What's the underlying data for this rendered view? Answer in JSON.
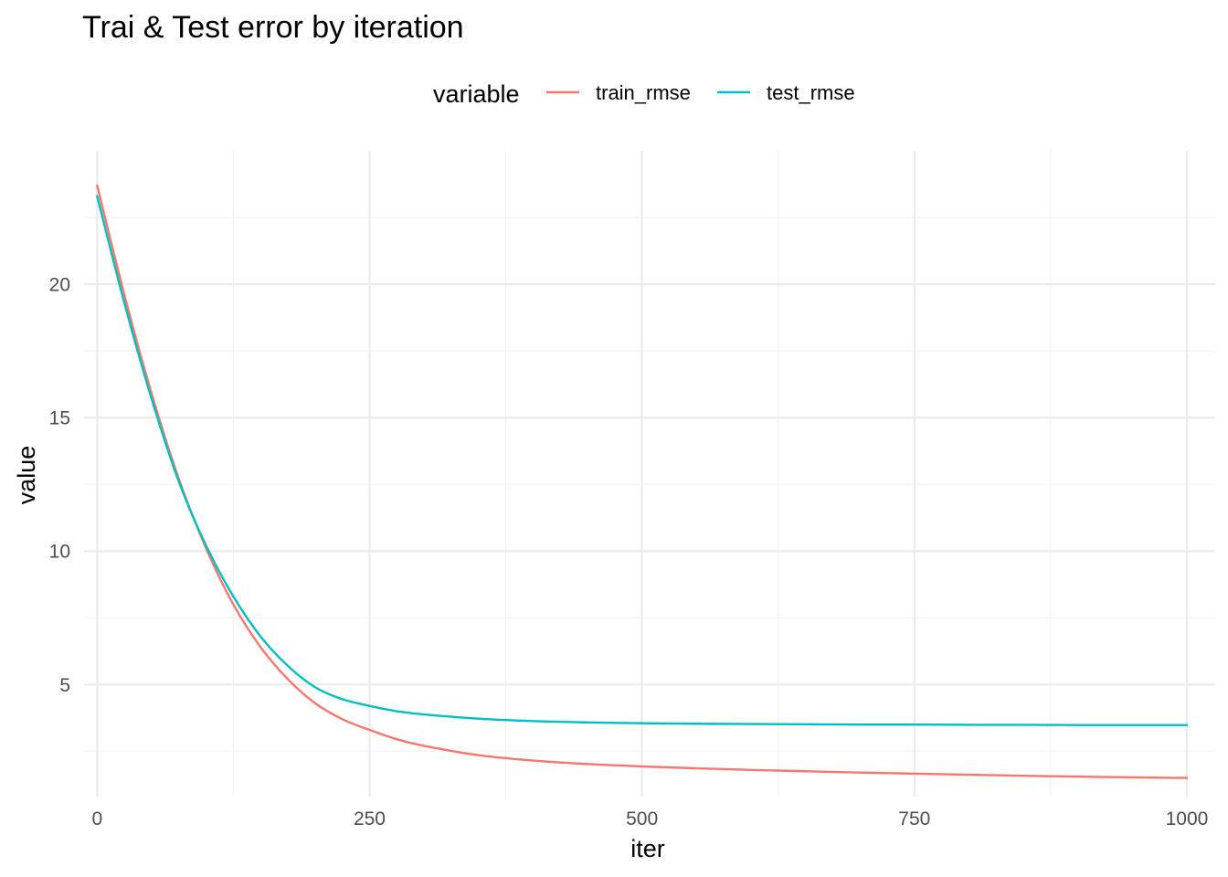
{
  "chart_data": {
    "type": "line",
    "title": "Trai & Test error by iteration",
    "xlabel": "iter",
    "ylabel": "value",
    "xlim": [
      -12,
      1026
    ],
    "ylim": [
      0.8,
      25
    ],
    "x_ticks": [
      0,
      250,
      500,
      750,
      1000
    ],
    "x_tick_labels": [
      "0",
      "250",
      "500",
      "750",
      "1000"
    ],
    "y_ticks": [
      5,
      10,
      15,
      20
    ],
    "y_tick_labels": [
      "5",
      "10",
      "15",
      "20"
    ],
    "grid": true,
    "legend": {
      "title": "variable",
      "placement": "top"
    },
    "x": [
      0,
      25,
      50,
      75,
      100,
      125,
      150,
      175,
      200,
      225,
      250,
      275,
      300,
      350,
      400,
      450,
      500,
      550,
      600,
      650,
      700,
      750,
      800,
      850,
      900,
      950,
      1000
    ],
    "series": [
      {
        "name": "train_rmse",
        "color": "#F8766D",
        "values": [
          23.7,
          19.6,
          15.9,
          12.7,
          10.1,
          8.0,
          6.4,
          5.2,
          4.3,
          3.7,
          3.3,
          2.95,
          2.7,
          2.35,
          2.15,
          2.02,
          1.93,
          1.86,
          1.8,
          1.75,
          1.7,
          1.66,
          1.62,
          1.58,
          1.55,
          1.52,
          1.5
        ]
      },
      {
        "name": "test_rmse",
        "color": "#00BFC4",
        "values": [
          23.3,
          19.3,
          15.7,
          12.6,
          10.2,
          8.3,
          6.8,
          5.7,
          4.9,
          4.45,
          4.2,
          4.0,
          3.88,
          3.72,
          3.63,
          3.58,
          3.55,
          3.53,
          3.52,
          3.51,
          3.5,
          3.5,
          3.49,
          3.49,
          3.48,
          3.48,
          3.48
        ]
      }
    ]
  }
}
